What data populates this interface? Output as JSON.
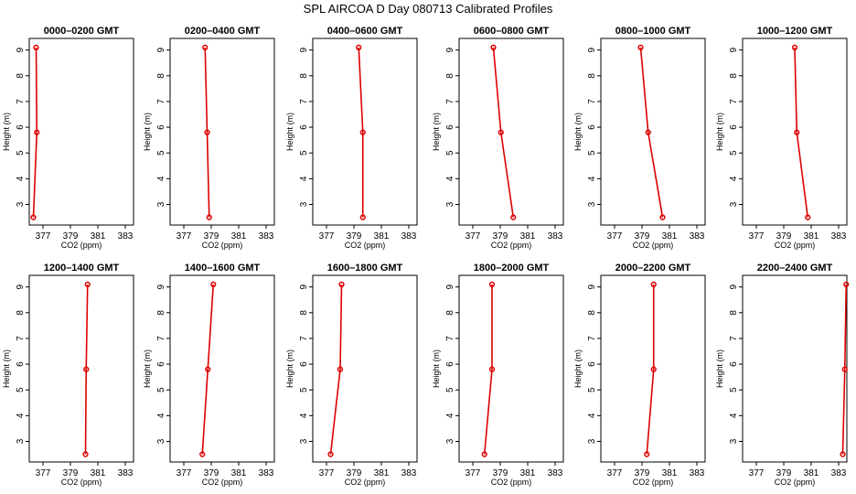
{
  "page": {
    "title": "SPL AIRCOA D  Day 080713  Calibrated Profiles"
  },
  "chart_data": {
    "type": "line",
    "colors": {
      "series": "#dd0000",
      "axes": "#000000"
    },
    "xlabel": "CO2 (ppm)",
    "ylabel": "Height (m)",
    "xlim": [
      376,
      383.6
    ],
    "ylim": [
      2.2,
      9.45
    ],
    "x_ticks": [
      377,
      379,
      381,
      383
    ],
    "y_ticks": [
      3,
      4,
      5,
      6,
      7,
      8,
      9
    ],
    "panels": [
      {
        "title": "0000–0200 GMT",
        "points": [
          {
            "x": 376.5,
            "y": 9.1
          },
          {
            "x": 376.55,
            "y": 5.8
          },
          {
            "x": 376.3,
            "y": 2.5
          }
        ]
      },
      {
        "title": "0200–0400 GMT",
        "points": [
          {
            "x": 378.55,
            "y": 9.1
          },
          {
            "x": 378.7,
            "y": 5.8
          },
          {
            "x": 378.85,
            "y": 2.5
          }
        ]
      },
      {
        "title": "0400–0600 GMT",
        "points": [
          {
            "x": 379.35,
            "y": 9.1
          },
          {
            "x": 379.65,
            "y": 5.8
          },
          {
            "x": 379.65,
            "y": 2.5
          }
        ]
      },
      {
        "title": "0600–0800 GMT",
        "points": [
          {
            "x": 378.5,
            "y": 9.1
          },
          {
            "x": 379.05,
            "y": 5.8
          },
          {
            "x": 379.95,
            "y": 2.5
          }
        ]
      },
      {
        "title": "0800–1000 GMT",
        "points": [
          {
            "x": 378.9,
            "y": 9.1
          },
          {
            "x": 379.45,
            "y": 5.8
          },
          {
            "x": 380.5,
            "y": 2.5
          }
        ]
      },
      {
        "title": "1000–1200 GMT",
        "points": [
          {
            "x": 379.8,
            "y": 9.1
          },
          {
            "x": 379.95,
            "y": 5.8
          },
          {
            "x": 380.75,
            "y": 2.5
          }
        ]
      },
      {
        "title": "1200–1400 GMT",
        "points": [
          {
            "x": 380.25,
            "y": 9.1
          },
          {
            "x": 380.15,
            "y": 5.8
          },
          {
            "x": 380.1,
            "y": 2.5
          }
        ]
      },
      {
        "title": "1400–1600 GMT",
        "points": [
          {
            "x": 379.15,
            "y": 9.1
          },
          {
            "x": 378.75,
            "y": 5.8
          },
          {
            "x": 378.35,
            "y": 2.5
          }
        ]
      },
      {
        "title": "1600–1800 GMT",
        "points": [
          {
            "x": 378.1,
            "y": 9.1
          },
          {
            "x": 378.0,
            "y": 5.8
          },
          {
            "x": 377.3,
            "y": 2.5
          }
        ]
      },
      {
        "title": "1800–2000 GMT",
        "points": [
          {
            "x": 378.4,
            "y": 9.1
          },
          {
            "x": 378.4,
            "y": 5.8
          },
          {
            "x": 377.85,
            "y": 2.5
          }
        ]
      },
      {
        "title": "2000–2200 GMT",
        "points": [
          {
            "x": 379.85,
            "y": 9.1
          },
          {
            "x": 379.85,
            "y": 5.8
          },
          {
            "x": 379.35,
            "y": 2.5
          }
        ]
      },
      {
        "title": "2200–2400 GMT",
        "points": [
          {
            "x": 383.55,
            "y": 9.1
          },
          {
            "x": 383.45,
            "y": 5.8
          },
          {
            "x": 383.3,
            "y": 2.5
          }
        ]
      }
    ]
  }
}
